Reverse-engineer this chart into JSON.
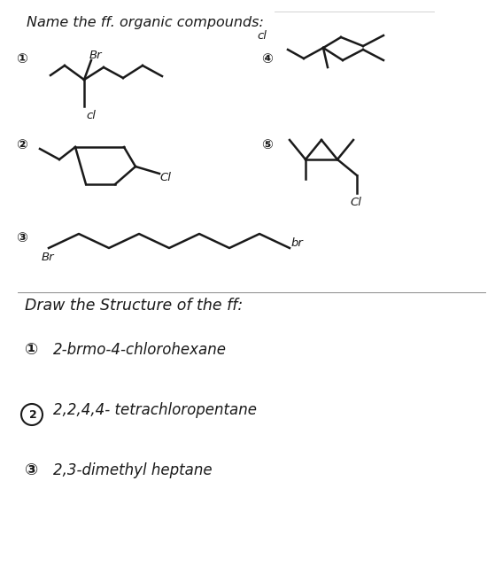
{
  "bg_color": "#ffffff",
  "text_color": "#1a1a1a",
  "title": "Name the ff. organic compounds:",
  "subtitle": "Draw the Structure of the ff:",
  "draw_item1": "2-brmo-4-chlorohexane",
  "draw_item2": "2,2,4,4- tetrachloropentane",
  "draw_item3": "2,3-dimethyl heptane",
  "lw": 1.8
}
